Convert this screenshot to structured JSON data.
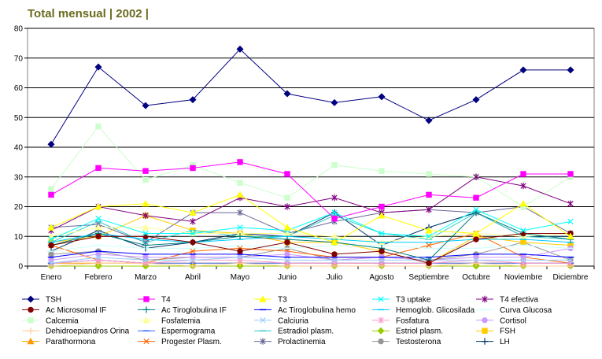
{
  "chart_data": {
    "type": "line",
    "title": "Total mensual | 2002 |",
    "xlabel": "",
    "ylabel": "",
    "ylim": [
      0,
      80
    ],
    "yticks": [
      0,
      10,
      20,
      30,
      40,
      50,
      60,
      70,
      80
    ],
    "grid": true,
    "legend_position": "bottom",
    "categories": [
      "Enero",
      "Febrero",
      "Marzo",
      "Abril",
      "Mayo",
      "Junio",
      "Julio",
      "Agosto",
      "Septiembre",
      "Octubre",
      "Noviembre",
      "Diciembre"
    ],
    "series": [
      {
        "name": "TSH",
        "color": "#000080",
        "marker": "diamond",
        "values": [
          41,
          67,
          54,
          56,
          73,
          58,
          55,
          57,
          49,
          56,
          66,
          66
        ]
      },
      {
        "name": "T4",
        "color": "#ff00ff",
        "marker": "square",
        "values": [
          24,
          33,
          32,
          33,
          35,
          31,
          16,
          20,
          24,
          23,
          31,
          31
        ]
      },
      {
        "name": "T3",
        "color": "#ffff00",
        "marker": "triangle",
        "values": [
          13,
          20,
          21,
          18,
          24,
          13,
          8,
          17,
          12,
          11,
          21,
          10
        ]
      },
      {
        "name": "T3 uptake",
        "color": "#00ffff",
        "marker": "x",
        "values": [
          9,
          16,
          11,
          11,
          13,
          12,
          18,
          11,
          10,
          19,
          12,
          15
        ]
      },
      {
        "name": "T4 efectiva",
        "color": "#800080",
        "marker": "star",
        "values": [
          12,
          20,
          17,
          15,
          23,
          20,
          23,
          18,
          19,
          30,
          27,
          21
        ]
      },
      {
        "name": "Ac Microsomal IF",
        "color": "#800000",
        "marker": "circle",
        "values": [
          7,
          10,
          10,
          8,
          5,
          8,
          4,
          5,
          1,
          9,
          11,
          11
        ]
      },
      {
        "name": "Ac Tiroglobulina IF",
        "color": "#008080",
        "marker": "plus",
        "values": [
          7,
          11,
          7,
          8,
          10,
          9,
          8,
          6,
          2,
          18,
          11,
          9
        ]
      },
      {
        "name": "Ac Tiroglobulina hemo",
        "color": "#0000ff",
        "marker": "dash",
        "values": [
          3,
          5,
          4,
          4,
          4,
          3,
          3,
          3,
          3,
          4,
          4,
          3
        ]
      },
      {
        "name": "Hemoglob. Glicosilada",
        "color": "#00ccff",
        "marker": "dash",
        "values": [
          8,
          11,
          9,
          8,
          9,
          10,
          9,
          8,
          8,
          9,
          9,
          8
        ]
      },
      {
        "name": "Curva Glucosa",
        "color": "#ccffff",
        "marker": "dash",
        "values": [
          5,
          7,
          6,
          6,
          7,
          6,
          7,
          7,
          6,
          6,
          7,
          6
        ]
      },
      {
        "name": "Calcemia",
        "color": "#ccffcc",
        "marker": "square",
        "values": [
          26,
          47,
          29,
          34,
          28,
          23,
          34,
          32,
          31,
          30,
          20,
          30
        ]
      },
      {
        "name": "Fosfatemia",
        "color": "#ffff99",
        "marker": "triangle",
        "values": [
          10,
          13,
          13,
          11,
          11,
          11,
          10,
          8,
          10,
          11,
          10,
          11
        ]
      },
      {
        "name": "Calciuria",
        "color": "#99ccff",
        "marker": "x",
        "values": [
          1,
          3,
          2,
          2,
          3,
          2,
          2,
          2,
          2,
          2,
          2,
          2
        ]
      },
      {
        "name": "Fosfatura",
        "color": "#ff99cc",
        "marker": "star",
        "values": [
          1,
          2,
          1,
          2,
          2,
          1,
          1,
          1,
          1,
          2,
          1,
          1
        ]
      },
      {
        "name": "Cortisol",
        "color": "#cc99ff",
        "marker": "circle",
        "values": [
          2,
          4,
          3,
          3,
          3,
          4,
          2,
          3,
          2,
          3,
          3,
          6
        ]
      },
      {
        "name": "Dehidroepiandros Orina",
        "color": "#ffcc99",
        "marker": "plus",
        "values": [
          0,
          1,
          1,
          0,
          1,
          0,
          0,
          0,
          0,
          1,
          0,
          0
        ]
      },
      {
        "name": "Espermograma",
        "color": "#3366ff",
        "marker": "dash",
        "values": [
          1,
          2,
          1,
          1,
          1,
          1,
          1,
          1,
          1,
          1,
          1,
          1
        ]
      },
      {
        "name": "Estradiol plasm.",
        "color": "#33cccc",
        "marker": "dash",
        "values": [
          8,
          15,
          8,
          12,
          10,
          10,
          17,
          11,
          9,
          18,
          10,
          9
        ]
      },
      {
        "name": "Estriol plasm.",
        "color": "#99cc00",
        "marker": "diamond",
        "values": [
          0,
          0,
          0,
          0,
          0,
          0,
          0,
          0,
          0,
          0,
          0,
          0
        ]
      },
      {
        "name": "FSH",
        "color": "#ffcc00",
        "marker": "square",
        "values": [
          8,
          10,
          17,
          12,
          11,
          8,
          8,
          5,
          1,
          10,
          8,
          7
        ]
      },
      {
        "name": "Parathormona",
        "color": "#ff9900",
        "marker": "triangle",
        "values": [
          1,
          1,
          1,
          1,
          1,
          1,
          1,
          1,
          1,
          1,
          1,
          1
        ]
      },
      {
        "name": "Progester Plasm.",
        "color": "#ff6600",
        "marker": "x",
        "values": [
          7,
          2,
          1,
          5,
          6,
          5,
          3,
          3,
          7,
          11,
          3,
          1
        ]
      },
      {
        "name": "Prolactinemia",
        "color": "#666699",
        "marker": "star",
        "values": [
          13,
          14,
          8,
          18,
          18,
          11,
          15,
          18,
          19,
          18,
          20,
          11
        ]
      },
      {
        "name": "Testosterona",
        "color": "#969696",
        "marker": "circle",
        "values": [
          4,
          5,
          2,
          3,
          3,
          6,
          2,
          3,
          2,
          4,
          8,
          2
        ]
      },
      {
        "name": "LH",
        "color": "#003366",
        "marker": "plus",
        "values": [
          5,
          12,
          6,
          8,
          11,
          10,
          18,
          7,
          13,
          18,
          10,
          10
        ]
      }
    ]
  }
}
